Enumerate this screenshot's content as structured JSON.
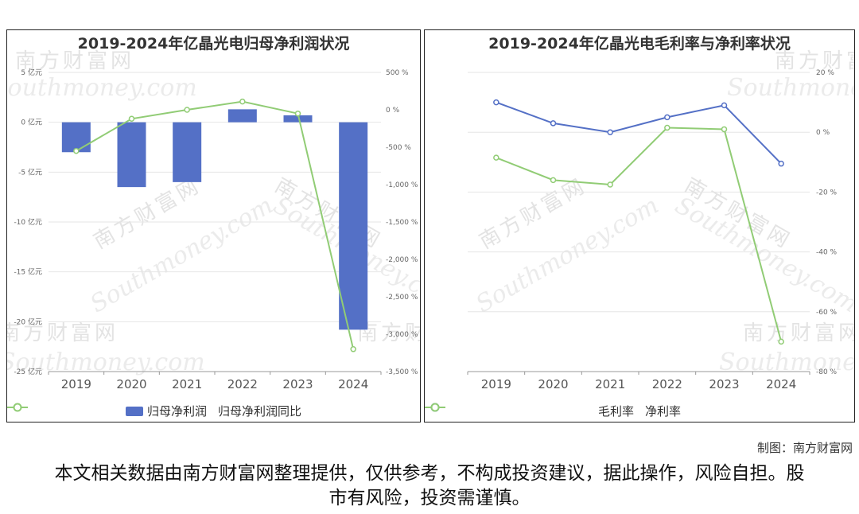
{
  "watermark": {
    "cn": "南方财富网",
    "en": "Southmoney.com"
  },
  "credit": "制图：南方财富网",
  "disclaimer": "本文相关数据由南方财富网整理提供，仅供参考，不构成投资建议，据此操作，风险自担。股市有风险，投资需谨慎。",
  "colors": {
    "bar": "#5470c6",
    "line_green": "#91cc75",
    "line_blue": "#5470c6"
  },
  "chart_data": [
    {
      "type": "bar",
      "title": "2019-2024年亿晶光电归母净利润状况",
      "categories": [
        "2019",
        "2020",
        "2021",
        "2022",
        "2023",
        "2024"
      ],
      "y_left": {
        "ticks": [
          "5 亿元",
          "0 亿元",
          "-5 亿元",
          "-10 亿元",
          "-15 亿元",
          "-20 亿元",
          "-25 亿元"
        ],
        "ylim": [
          -25,
          5
        ]
      },
      "y_right": {
        "ticks": [
          "500 %",
          "0 %",
          "-500 %",
          "-1,000 %",
          "-1,500 %",
          "-2,000 %",
          "-2,500 %",
          "-3,000 %",
          "-3,500 %"
        ],
        "ylim": [
          -3500,
          500
        ]
      },
      "series": [
        {
          "name": "归母净利润",
          "type": "bar",
          "axis": "left",
          "values": [
            -3.0,
            -6.5,
            -6.0,
            1.3,
            0.7,
            -20.8
          ]
        },
        {
          "name": "归母净利润同比",
          "type": "line",
          "axis": "right",
          "values": [
            -550,
            -120,
            0,
            110,
            -50,
            -3200
          ]
        }
      ],
      "legend": "bottom"
    },
    {
      "type": "line",
      "title": "2019-2024年亿晶光电毛利率与净利率状况",
      "categories": [
        "2019",
        "2020",
        "2021",
        "2022",
        "2023",
        "2024"
      ],
      "y_right": {
        "ticks": [
          "20 %",
          "0 %",
          "-20 %",
          "-40 %",
          "-60 %",
          "-80 %"
        ],
        "ylim": [
          -80,
          20
        ]
      },
      "series": [
        {
          "name": "毛利率",
          "values": [
            10.0,
            3.0,
            0.0,
            5.0,
            9.0,
            -10.5
          ]
        },
        {
          "name": "净利率",
          "values": [
            -8.5,
            -16.0,
            -17.5,
            1.5,
            1.0,
            -70.0
          ]
        }
      ],
      "legend": "bottom"
    }
  ]
}
